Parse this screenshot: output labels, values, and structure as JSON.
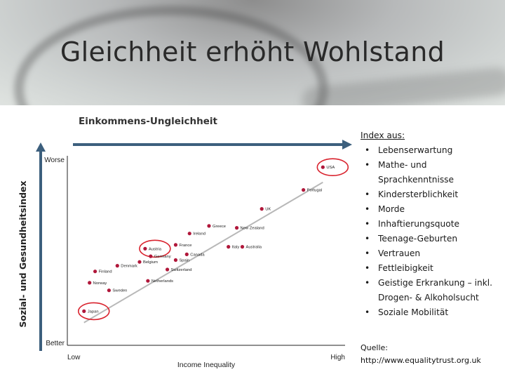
{
  "title": "Gleichheit erhöht Wohlstand",
  "top_axis_label": "Einkommens-Ungleichheit",
  "side_axis_label": "Sozial- und Gesundheitsindex",
  "index_box": {
    "title": "Index aus:",
    "items": [
      "Lebenserwartung",
      "Mathe- und Sprachkenntnisse",
      "Kindersterblichkeit",
      "Morde",
      "Inhaftierungsquote",
      "Teenage-Geburten",
      "Vertrauen",
      "Fettleibigkeit",
      "Geistige Erkrankung – inkl. Drogen- & Alkoholsucht",
      "Soziale Mobilität"
    ]
  },
  "source": {
    "label": "Quelle:",
    "url": "http://www.equalitytrust.org.uk"
  },
  "colors": {
    "arrow": "#3c5f7d",
    "point": "#b0173a",
    "trend": "#b8b8b8",
    "highlight": "#d9232e"
  },
  "chart_data": {
    "type": "scatter",
    "xlabel": "Income Inequality",
    "ylabel": "",
    "x_tick_labels": [
      "Low",
      "High"
    ],
    "y_tick_labels": [
      "Worse",
      "Better"
    ],
    "xlim": [
      0,
      100
    ],
    "ylim": [
      0,
      100
    ],
    "trend_line": [
      [
        6,
        12
      ],
      [
        92,
        86
      ]
    ],
    "points": [
      {
        "label": "Japan",
        "x": 6,
        "y": 18,
        "highlight": true
      },
      {
        "label": "Sweden",
        "x": 15,
        "y": 29
      },
      {
        "label": "Norway",
        "x": 8,
        "y": 33
      },
      {
        "label": "Finland",
        "x": 10,
        "y": 39
      },
      {
        "label": "Denmark",
        "x": 18,
        "y": 42
      },
      {
        "label": "Netherlands",
        "x": 29,
        "y": 34
      },
      {
        "label": "Belgium",
        "x": 26,
        "y": 44
      },
      {
        "label": "Austria",
        "x": 28,
        "y": 51,
        "highlight": true
      },
      {
        "label": "Germany",
        "x": 30,
        "y": 47
      },
      {
        "label": "Switzerland",
        "x": 36,
        "y": 40
      },
      {
        "label": "Spain",
        "x": 39,
        "y": 45
      },
      {
        "label": "France",
        "x": 39,
        "y": 53
      },
      {
        "label": "Canada",
        "x": 43,
        "y": 48
      },
      {
        "label": "Ireland",
        "x": 44,
        "y": 59
      },
      {
        "label": "Greece",
        "x": 51,
        "y": 63
      },
      {
        "label": "Italy",
        "x": 58,
        "y": 52
      },
      {
        "label": "New Zealand",
        "x": 61,
        "y": 62
      },
      {
        "label": "Australia",
        "x": 63,
        "y": 52
      },
      {
        "label": "UK",
        "x": 70,
        "y": 72
      },
      {
        "label": "Portugal",
        "x": 85,
        "y": 82
      },
      {
        "label": "USA",
        "x": 92,
        "y": 94,
        "highlight": true
      }
    ]
  }
}
